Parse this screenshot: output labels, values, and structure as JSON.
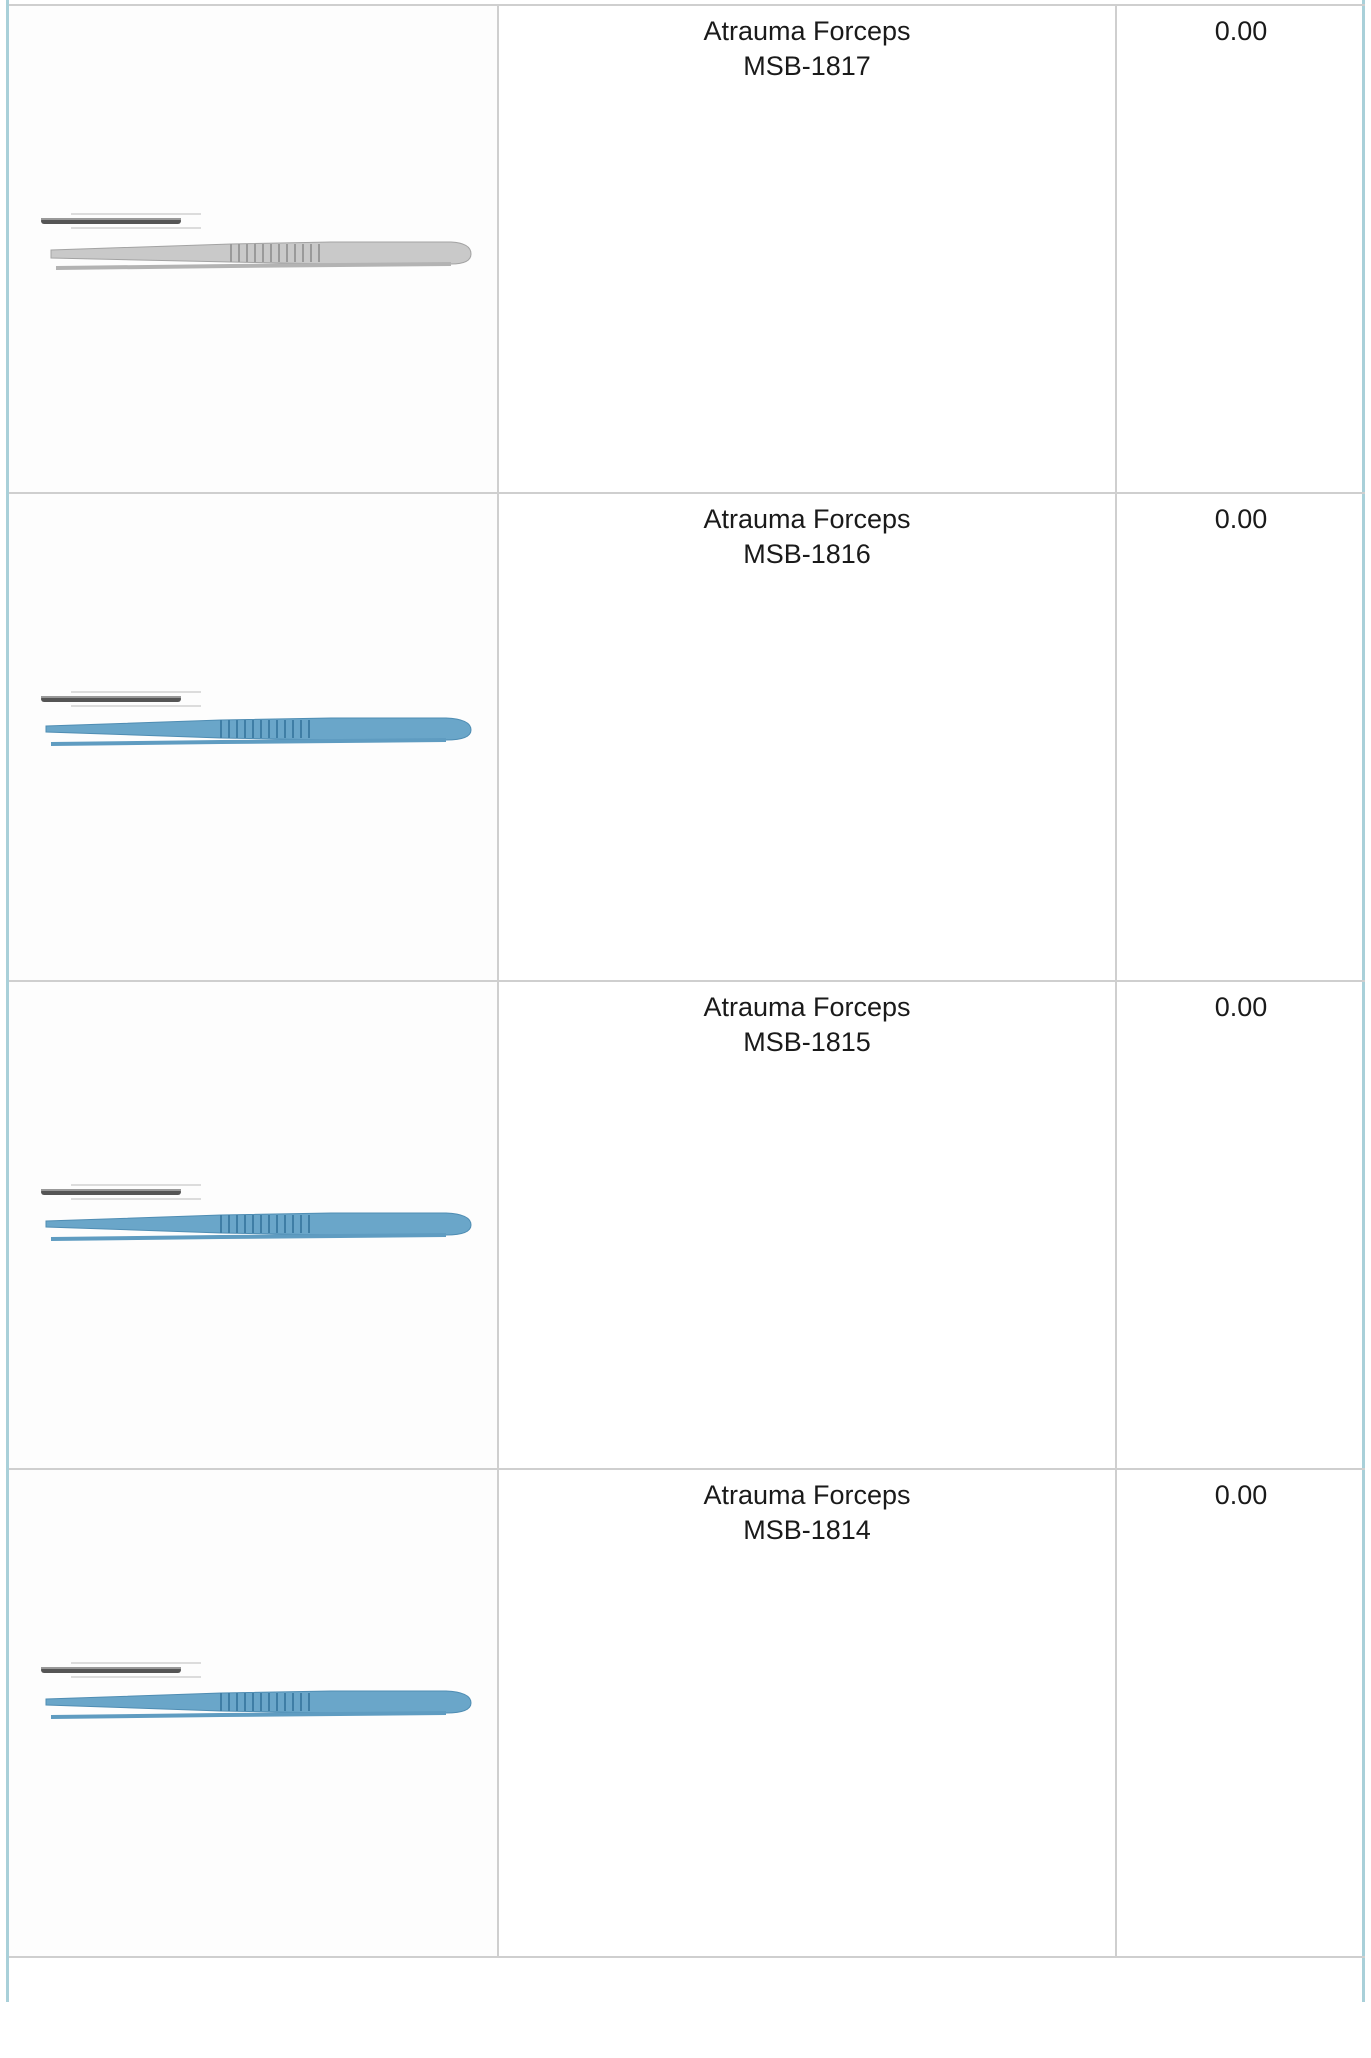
{
  "colors": {
    "frame": "#a9d0d9",
    "grid": "#cfcfcf",
    "steel": "#c9c9c9",
    "blue": "#6aa6c9"
  },
  "products": [
    {
      "name": "Atrauma Forceps",
      "code": "MSB-1817",
      "price": "0.00",
      "finish": "steel"
    },
    {
      "name": "Atrauma Forceps",
      "code": "MSB-1816",
      "price": "0.00",
      "finish": "blue"
    },
    {
      "name": "Atrauma Forceps",
      "code": "MSB-1815",
      "price": "0.00",
      "finish": "blue"
    },
    {
      "name": "Atrauma Forceps",
      "code": "MSB-1814",
      "price": "0.00",
      "finish": "blue"
    }
  ]
}
